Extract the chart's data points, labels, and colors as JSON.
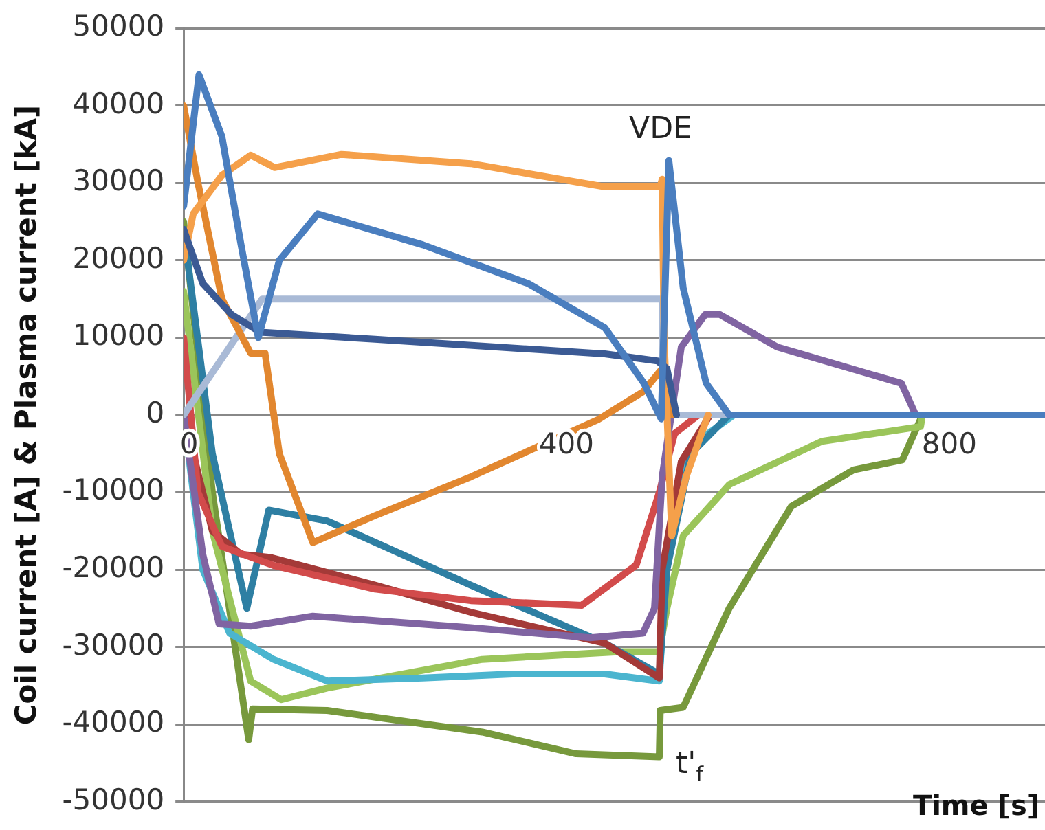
{
  "chart_data": {
    "type": "line",
    "xlabel": "Time [s]",
    "ylabel": "Coil current [A] & Plasma current [kA]",
    "xlim": [
      0,
      900
    ],
    "ylim": [
      -50000,
      50000
    ],
    "xticks": [
      0,
      400,
      800
    ],
    "yticks": [
      -50000,
      -40000,
      -30000,
      -20000,
      -10000,
      0,
      10000,
      20000,
      30000,
      40000,
      50000
    ],
    "grid": "y",
    "legend": false,
    "marker": "none",
    "line_style": "solid",
    "annotations": [
      "VDE",
      "t'$_{f}$"
    ],
    "series": [
      {
        "color": "#4a7ebf",
        "x": [
          0,
          16,
          40,
          60,
          78,
          100,
          140,
          250,
          360,
          440,
          481,
          499,
          507,
          522,
          546,
          570,
          900
        ],
        "values": [
          27000,
          44000,
          36000,
          22000,
          10000,
          20000,
          26000,
          22000,
          17000,
          11300,
          4100,
          -500,
          32900,
          16400,
          4100,
          0,
          0
        ]
      },
      {
        "color": "#3b5a94",
        "x": [
          0,
          20,
          50,
          80,
          200,
          440,
          495,
          505,
          515
        ],
        "values": [
          24000,
          17000,
          13000,
          10700,
          9800,
          7900,
          7000,
          6000,
          0
        ]
      },
      {
        "color": "#f5a04a",
        "x": [
          0,
          10,
          40,
          70,
          95,
          165,
          300,
          440,
          498,
          500,
          502,
          510,
          525,
          548
        ],
        "values": [
          20000,
          26000,
          31000,
          33600,
          32000,
          33700,
          32500,
          29500,
          29500,
          30500,
          10000,
          -15600,
          -8000,
          0
        ]
      },
      {
        "color": "#e2872f",
        "x": [
          0,
          15,
          40,
          70,
          85,
          100,
          135,
          200,
          300,
          433,
          480,
          500,
          510
        ],
        "values": [
          40000,
          30000,
          15000,
          8000,
          8000,
          -5000,
          -16500,
          -13000,
          -8000,
          -600,
          3000,
          6000,
          0
        ]
      },
      {
        "color": "#a9bad6",
        "x": [
          0,
          82,
          500,
          501,
          900
        ],
        "values": [
          0,
          15000,
          15000,
          0,
          0
        ]
      },
      {
        "color": "#8064a2",
        "x": [
          0,
          20,
          37,
          70,
          135,
          300,
          425,
          480,
          492,
          500,
          520,
          545,
          560,
          620,
          750,
          765,
          900
        ],
        "values": [
          0,
          -18000,
          -27000,
          -27300,
          -26000,
          -27500,
          -28800,
          -28200,
          -25000,
          -8000,
          8800,
          13000,
          13000,
          8800,
          4100,
          0,
          0
        ]
      },
      {
        "color": "#d24b4b",
        "x": [
          0,
          15,
          40,
          95,
          200,
          300,
          416,
          473,
          497,
          513,
          538
        ],
        "values": [
          10000,
          -10000,
          -17000,
          -19500,
          -22500,
          -24000,
          -24600,
          -19400,
          -10000,
          -2400,
          0
        ]
      },
      {
        "color": "#a43a38",
        "x": [
          0,
          30,
          60,
          90,
          200,
          300,
          440,
          497,
          500,
          520,
          550
        ],
        "values": [
          0,
          -15000,
          -18000,
          -18400,
          -22000,
          -25500,
          -29500,
          -34000,
          -20000,
          -6000,
          0
        ]
      },
      {
        "color": "#2e7fa3",
        "x": [
          0,
          30,
          66,
          89,
          150,
          300,
          440,
          497,
          505,
          530,
          570
        ],
        "values": [
          24000,
          -5000,
          -25000,
          -12300,
          -13700,
          -22000,
          -29500,
          -33500,
          -20000,
          -5000,
          0
        ]
      },
      {
        "color": "#4bb5cf",
        "x": [
          0,
          20,
          48,
          94,
          150,
          250,
          344,
          440,
          497,
          505,
          530,
          575
        ],
        "values": [
          0,
          -20000,
          -28200,
          -31600,
          -34400,
          -34000,
          -33500,
          -33500,
          -34400,
          -18000,
          -4000,
          0
        ]
      },
      {
        "color": "#9bc55a",
        "x": [
          0,
          30,
          70,
          102,
          150,
          312,
          457,
          497,
          505,
          522,
          570,
          667,
          770,
          772
        ],
        "values": [
          16000,
          -15000,
          -34400,
          -36800,
          -35300,
          -31600,
          -30600,
          -30600,
          -25000,
          -15600,
          -9000,
          -3400,
          -1500,
          0
        ]
      },
      {
        "color": "#77993c",
        "x": [
          0,
          30,
          68,
          72,
          150,
          312,
          410,
          497,
          498,
          522,
          570,
          635,
          700,
          751,
          772
        ],
        "values": [
          25000,
          -10000,
          -42000,
          -38000,
          -38200,
          -41000,
          -43800,
          -44200,
          -38200,
          -37800,
          -25000,
          -11800,
          -7100,
          -5800,
          0
        ]
      }
    ]
  }
}
